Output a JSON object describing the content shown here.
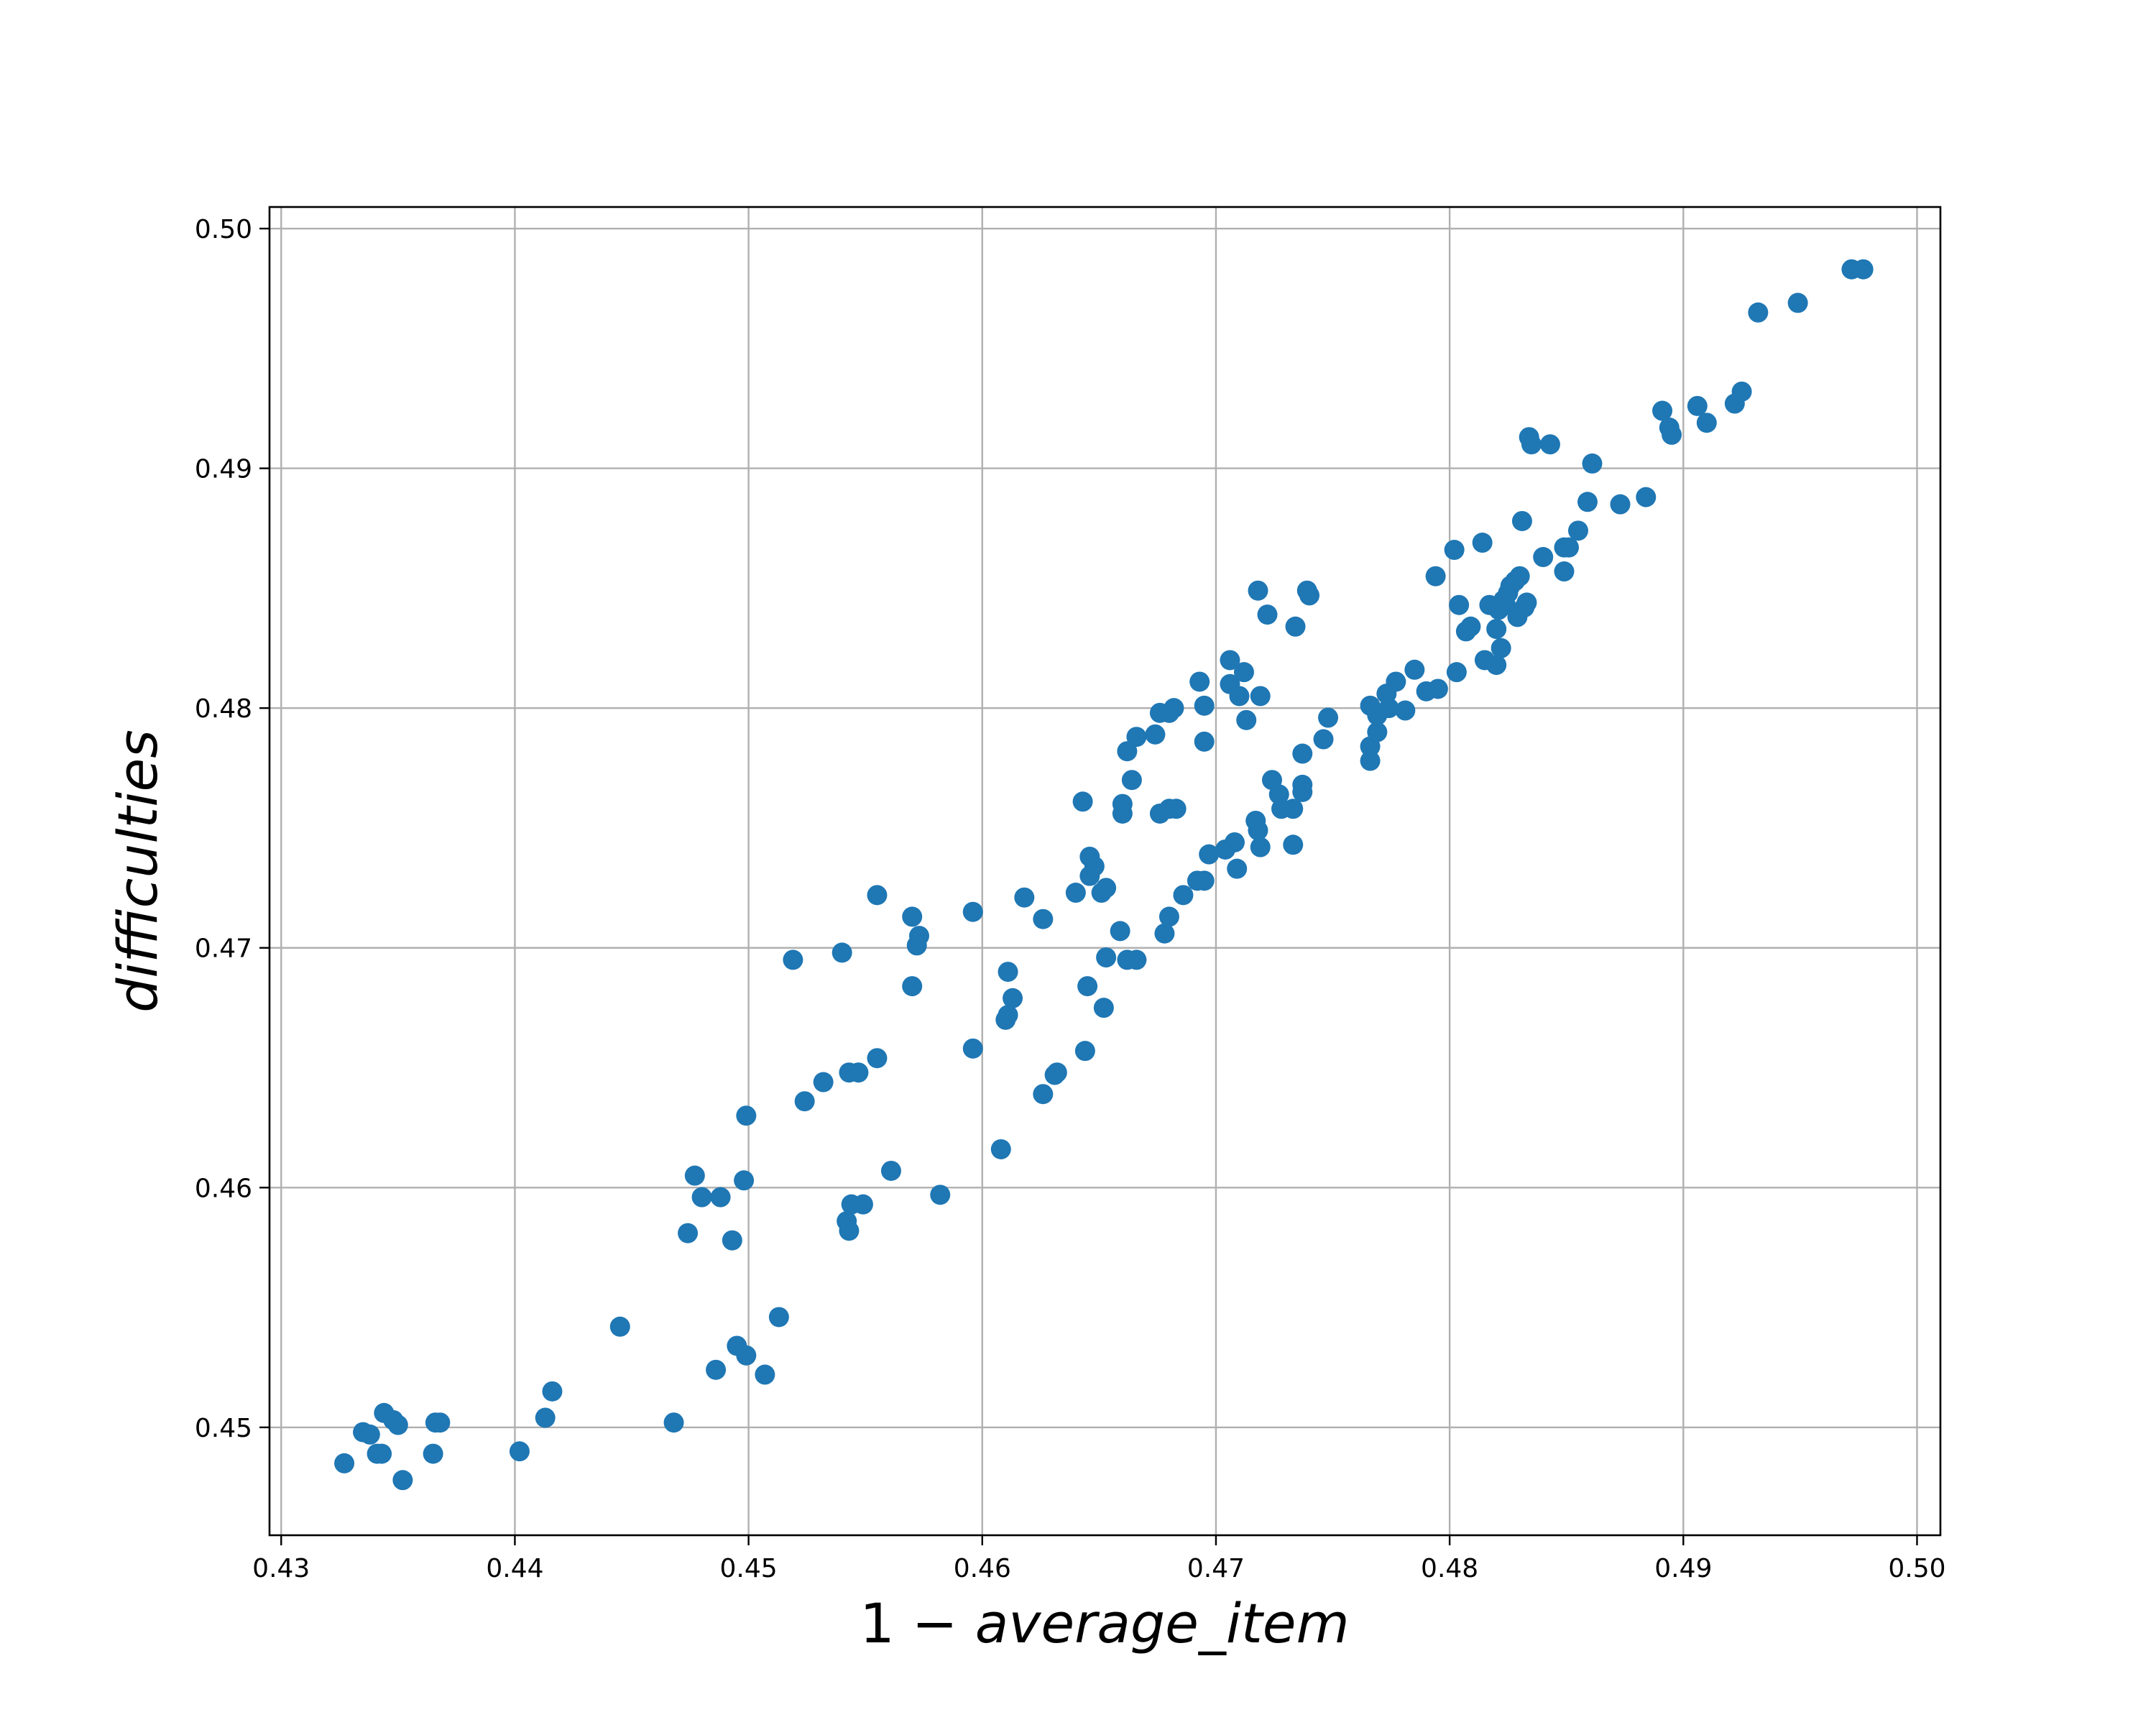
{
  "chart_data": {
    "type": "scatter",
    "title": "",
    "xlabel": {
      "prefix": "1",
      "operator": "−",
      "term": "average_item"
    },
    "ylabel": "difficulties",
    "xlim": [
      0.4295,
      0.501
    ],
    "ylim": [
      0.4455,
      0.5009
    ],
    "xticks": [
      0.43,
      0.44,
      0.45,
      0.46,
      0.47,
      0.48,
      0.49,
      0.5
    ],
    "xtick_labels": [
      "0.43",
      "0.44",
      "0.45",
      "0.46",
      "0.47",
      "0.48",
      "0.49",
      "0.50"
    ],
    "yticks": [
      0.45,
      0.46,
      0.47,
      0.48,
      0.49,
      0.5
    ],
    "ytick_labels": [
      "0.45",
      "0.46",
      "0.47",
      "0.48",
      "0.49",
      "0.50"
    ],
    "grid": true,
    "marker_color": "#1f77b4",
    "points": [
      [
        0.4327,
        0.4485
      ],
      [
        0.4335,
        0.4498
      ],
      [
        0.4338,
        0.4497
      ],
      [
        0.4341,
        0.4489
      ],
      [
        0.4343,
        0.4489
      ],
      [
        0.4344,
        0.4506
      ],
      [
        0.4348,
        0.4503
      ],
      [
        0.435,
        0.4501
      ],
      [
        0.4352,
        0.4478
      ],
      [
        0.4365,
        0.4489
      ],
      [
        0.4366,
        0.4502
      ],
      [
        0.4368,
        0.4502
      ],
      [
        0.4402,
        0.449
      ],
      [
        0.4413,
        0.4504
      ],
      [
        0.4416,
        0.4515
      ],
      [
        0.4445,
        0.4542
      ],
      [
        0.4468,
        0.4502
      ],
      [
        0.4474,
        0.4581
      ],
      [
        0.4477,
        0.4605
      ],
      [
        0.448,
        0.4596
      ],
      [
        0.4486,
        0.4524
      ],
      [
        0.4488,
        0.4596
      ],
      [
        0.4493,
        0.4578
      ],
      [
        0.4495,
        0.4534
      ],
      [
        0.4499,
        0.453
      ],
      [
        0.4498,
        0.4603
      ],
      [
        0.4499,
        0.463
      ],
      [
        0.4507,
        0.4522
      ],
      [
        0.4513,
        0.4546
      ],
      [
        0.4519,
        0.4695
      ],
      [
        0.4524,
        0.4636
      ],
      [
        0.4532,
        0.4644
      ],
      [
        0.454,
        0.4698
      ],
      [
        0.4542,
        0.4586
      ],
      [
        0.4543,
        0.4582
      ],
      [
        0.4544,
        0.4593
      ],
      [
        0.4543,
        0.4648
      ],
      [
        0.4547,
        0.4648
      ],
      [
        0.4549,
        0.4593
      ],
      [
        0.4555,
        0.4722
      ],
      [
        0.4555,
        0.4654
      ],
      [
        0.4561,
        0.4607
      ],
      [
        0.457,
        0.4713
      ],
      [
        0.457,
        0.4684
      ],
      [
        0.4572,
        0.4701
      ],
      [
        0.4573,
        0.4705
      ],
      [
        0.4582,
        0.4597
      ],
      [
        0.4596,
        0.4715
      ],
      [
        0.4596,
        0.4658
      ],
      [
        0.4608,
        0.4616
      ],
      [
        0.461,
        0.467
      ],
      [
        0.4611,
        0.4672
      ],
      [
        0.4611,
        0.469
      ],
      [
        0.4613,
        0.4679
      ],
      [
        0.4618,
        0.4721
      ],
      [
        0.4626,
        0.4712
      ],
      [
        0.4626,
        0.4639
      ],
      [
        0.4631,
        0.4647
      ],
      [
        0.4632,
        0.4648
      ],
      [
        0.464,
        0.4723
      ],
      [
        0.4643,
        0.4761
      ],
      [
        0.4644,
        0.4657
      ],
      [
        0.4645,
        0.4684
      ],
      [
        0.4646,
        0.4738
      ],
      [
        0.4646,
        0.473
      ],
      [
        0.4648,
        0.4734
      ],
      [
        0.4651,
        0.4723
      ],
      [
        0.4652,
        0.4675
      ],
      [
        0.4653,
        0.4725
      ],
      [
        0.4653,
        0.4696
      ],
      [
        0.4659,
        0.4707
      ],
      [
        0.466,
        0.476
      ],
      [
        0.466,
        0.4756
      ],
      [
        0.4662,
        0.4695
      ],
      [
        0.4662,
        0.4782
      ],
      [
        0.4664,
        0.477
      ],
      [
        0.4666,
        0.4695
      ],
      [
        0.4666,
        0.4788
      ],
      [
        0.4674,
        0.4789
      ],
      [
        0.4676,
        0.4798
      ],
      [
        0.4676,
        0.4756
      ],
      [
        0.4678,
        0.4706
      ],
      [
        0.468,
        0.4713
      ],
      [
        0.468,
        0.4758
      ],
      [
        0.468,
        0.4798
      ],
      [
        0.4682,
        0.48
      ],
      [
        0.4683,
        0.4758
      ],
      [
        0.4686,
        0.4722
      ],
      [
        0.4692,
        0.4728
      ],
      [
        0.4693,
        0.4811
      ],
      [
        0.4695,
        0.4728
      ],
      [
        0.4695,
        0.4786
      ],
      [
        0.4695,
        0.4801
      ],
      [
        0.4697,
        0.4739
      ],
      [
        0.4704,
        0.4741
      ],
      [
        0.4706,
        0.482
      ],
      [
        0.4706,
        0.481
      ],
      [
        0.4708,
        0.4744
      ],
      [
        0.4709,
        0.4733
      ],
      [
        0.471,
        0.4805
      ],
      [
        0.4712,
        0.4815
      ],
      [
        0.4713,
        0.4795
      ],
      [
        0.4717,
        0.4753
      ],
      [
        0.4718,
        0.4849
      ],
      [
        0.4718,
        0.4749
      ],
      [
        0.4719,
        0.4742
      ],
      [
        0.4719,
        0.4805
      ],
      [
        0.4722,
        0.4839
      ],
      [
        0.4724,
        0.477
      ],
      [
        0.4727,
        0.4764
      ],
      [
        0.4728,
        0.4758
      ],
      [
        0.4733,
        0.4758
      ],
      [
        0.4733,
        0.4743
      ],
      [
        0.4734,
        0.4834
      ],
      [
        0.4737,
        0.4768
      ],
      [
        0.4737,
        0.4765
      ],
      [
        0.4737,
        0.4781
      ],
      [
        0.4739,
        0.4849
      ],
      [
        0.474,
        0.4847
      ],
      [
        0.4746,
        0.4787
      ],
      [
        0.4748,
        0.4796
      ],
      [
        0.4766,
        0.4778
      ],
      [
        0.4766,
        0.4784
      ],
      [
        0.4766,
        0.4801
      ],
      [
        0.4769,
        0.479
      ],
      [
        0.4769,
        0.4797
      ],
      [
        0.4773,
        0.4806
      ],
      [
        0.4774,
        0.48
      ],
      [
        0.4777,
        0.4811
      ],
      [
        0.4781,
        0.4799
      ],
      [
        0.4785,
        0.4816
      ],
      [
        0.479,
        0.4807
      ],
      [
        0.4794,
        0.4855
      ],
      [
        0.4795,
        0.4808
      ],
      [
        0.4802,
        0.4866
      ],
      [
        0.4803,
        0.4815
      ],
      [
        0.4804,
        0.4843
      ],
      [
        0.4807,
        0.4832
      ],
      [
        0.4809,
        0.4834
      ],
      [
        0.4814,
        0.4869
      ],
      [
        0.4815,
        0.482
      ],
      [
        0.4817,
        0.4843
      ],
      [
        0.482,
        0.4833
      ],
      [
        0.482,
        0.4818
      ],
      [
        0.4821,
        0.4841
      ],
      [
        0.4822,
        0.4825
      ],
      [
        0.4823,
        0.4845
      ],
      [
        0.4824,
        0.4843
      ],
      [
        0.4825,
        0.4848
      ],
      [
        0.4826,
        0.4851
      ],
      [
        0.4828,
        0.4853
      ],
      [
        0.4829,
        0.4838
      ],
      [
        0.483,
        0.4855
      ],
      [
        0.4831,
        0.4878
      ],
      [
        0.4832,
        0.4842
      ],
      [
        0.4833,
        0.4844
      ],
      [
        0.4834,
        0.4913
      ],
      [
        0.4835,
        0.491
      ],
      [
        0.484,
        0.4863
      ],
      [
        0.4843,
        0.491
      ],
      [
        0.4849,
        0.4867
      ],
      [
        0.4849,
        0.4857
      ],
      [
        0.4851,
        0.4867
      ],
      [
        0.4855,
        0.4874
      ],
      [
        0.4859,
        0.4886
      ],
      [
        0.4861,
        0.4902
      ],
      [
        0.4873,
        0.4885
      ],
      [
        0.4884,
        0.4888
      ],
      [
        0.4891,
        0.4924
      ],
      [
        0.4894,
        0.4917
      ],
      [
        0.4895,
        0.4914
      ],
      [
        0.4906,
        0.4926
      ],
      [
        0.491,
        0.4919
      ],
      [
        0.4922,
        0.4927
      ],
      [
        0.4925,
        0.4932
      ],
      [
        0.4932,
        0.4965
      ],
      [
        0.4949,
        0.4969
      ],
      [
        0.4972,
        0.4983
      ],
      [
        0.4977,
        0.4983
      ]
    ]
  }
}
